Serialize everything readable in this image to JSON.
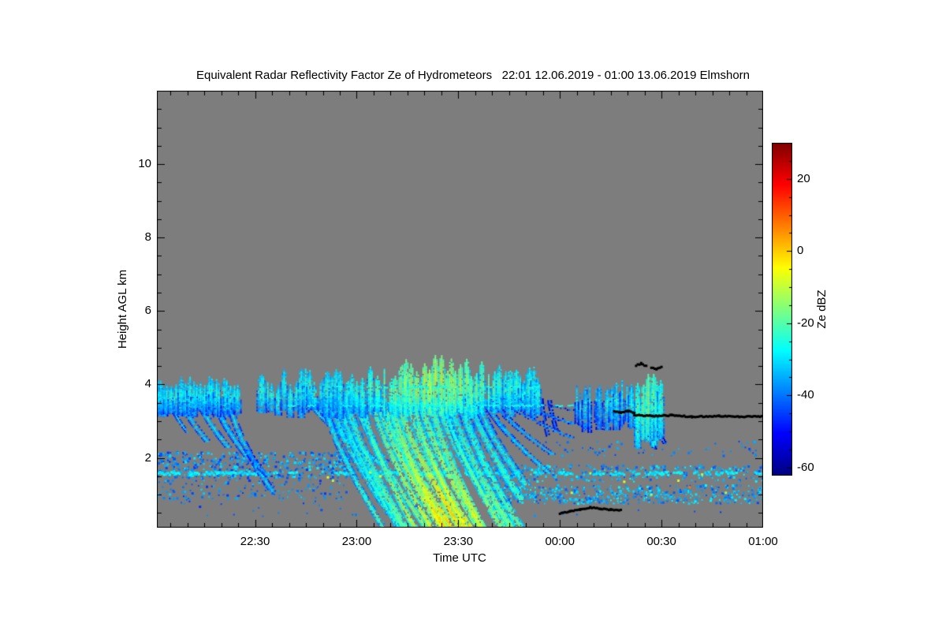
{
  "chart_data": {
    "type": "heatmap",
    "title": "Equivalent Radar Reflectivity Factor Ze of Hydrometeors   22:01 12.06.2019 - 01:00 13.06.2019 Elmshorn",
    "station": "Elmshorn",
    "time_span": "22:01 12.06.2019 - 01:00 13.06.2019",
    "xlabel": "Time UTC",
    "ylabel": "Height AGL km",
    "plot_bg_color": "#7d7d7d",
    "x_axis": {
      "start_label": "22:01",
      "end_label": "01:00",
      "duration_min": 179,
      "major_ticks": [
        {
          "min": 29,
          "label": "22:30"
        },
        {
          "min": 59,
          "label": "23:00"
        },
        {
          "min": 89,
          "label": "23:30"
        },
        {
          "min": 119,
          "label": "00:00"
        },
        {
          "min": 149,
          "label": "00:30"
        },
        {
          "min": 179,
          "label": "01:00"
        }
      ],
      "minor_step_min": 5
    },
    "y_axis": {
      "range_km": [
        0.1,
        12
      ],
      "major_ticks": [
        2,
        4,
        6,
        8,
        10
      ],
      "minor_step_km": 0.5
    },
    "colorbar": {
      "label": "Ze dBZ",
      "colormap": "jet",
      "range_dbz": [
        -62,
        30
      ],
      "major_ticks": [
        20,
        0,
        -20,
        -40,
        -60
      ],
      "minor_step_dbz": 5,
      "top_color": "#7f0000",
      "bottom_color": "#00007f"
    },
    "features": [
      {
        "name": "insect-layer-left-upper",
        "type": "speckle",
        "t0": 0,
        "t1": 57,
        "h0": 1.45,
        "h1": 2.15,
        "n": 550,
        "dbz0": -46,
        "dbz1": -28,
        "seed": 11
      },
      {
        "name": "insect-layer-left-lower",
        "type": "speckle",
        "t0": 0,
        "t1": 57,
        "h0": 0.85,
        "h1": 1.45,
        "n": 170,
        "dbz0": -46,
        "dbz1": -31,
        "seed": 12
      },
      {
        "name": "insect-layer-mid",
        "type": "speckle",
        "t0": 57,
        "t1": 96,
        "h0": 1.5,
        "h1": 2.1,
        "n": 90,
        "dbz0": -45,
        "dbz1": -30,
        "seed": 13
      },
      {
        "name": "insect-layer-right-mid",
        "type": "speckle",
        "t0": 96,
        "t1": 179,
        "h0": 1.35,
        "h1": 1.8,
        "n": 330,
        "dbz0": -44,
        "dbz1": -27,
        "seed": 14
      },
      {
        "name": "insect-layer-right-low",
        "type": "speckle",
        "t0": 100,
        "t1": 179,
        "h0": 0.75,
        "h1": 1.25,
        "n": 520,
        "dbz0": -44,
        "dbz1": -27,
        "seed": 15
      },
      {
        "name": "specks-high-right",
        "type": "speckle",
        "t0": 108,
        "t1": 179,
        "h0": 2.05,
        "h1": 2.45,
        "n": 70,
        "dbz0": -46,
        "dbz1": -33,
        "seed": 16
      },
      {
        "name": "sparse-specks-low",
        "type": "speckle",
        "t0": 4,
        "t1": 175,
        "h0": 0.4,
        "h1": 0.85,
        "n": 40,
        "dbz0": -47,
        "dbz1": -36,
        "seed": 17
      },
      {
        "name": "bragg-row-1.6km",
        "type": "dashrow",
        "h": 1.58,
        "t0": 0,
        "t1": 179,
        "dbz": -29,
        "fill": 0.5,
        "seg": 1.8,
        "thick": 3,
        "jitter": 0.05,
        "seed": 21
      },
      {
        "name": "bragg-row-1.0km",
        "type": "dashrow",
        "h": 1.0,
        "t0": 100,
        "t1": 179,
        "dbz": -32,
        "fill": 0.35,
        "seg": 1.5,
        "thick": 2,
        "jitter": 0.07,
        "seed": 22
      },
      {
        "name": "fall-streaks-band-A",
        "type": "streaks",
        "seed": 31,
        "items": [
          {
            "t": 4,
            "top": 3.5,
            "bottom": 2.7,
            "drift": 5,
            "w": 1.3,
            "coreTop": -33,
            "coreBot": -31
          },
          {
            "t": 8,
            "top": 3.45,
            "bottom": 2.45,
            "drift": 7,
            "w": 1.5,
            "coreTop": -32,
            "coreBot": -30
          },
          {
            "t": 13,
            "top": 3.5,
            "bottom": 2.3,
            "drift": 8,
            "w": 1.6,
            "coreTop": -31,
            "coreBot": -30
          },
          {
            "t": 18,
            "top": 3.4,
            "bottom": 2.0,
            "drift": 9,
            "w": 1.5,
            "coreTop": -32,
            "coreBot": -31
          },
          {
            "t": 22,
            "top": 3.35,
            "bottom": 1.1,
            "drift": 12,
            "w": 1.7,
            "coreTop": -31,
            "coreBot": -32
          },
          {
            "t": 27,
            "top": 2.2,
            "bottom": 1.5,
            "drift": 6,
            "w": 1.8,
            "coreTop": -38,
            "coreBot": -35
          }
        ]
      },
      {
        "name": "virga-trail-right",
        "type": "streaks",
        "seed": 32,
        "items": [
          {
            "t": 113.5,
            "top": 3.6,
            "bottom": 2.6,
            "drift": 2,
            "w": 0.8,
            "coreTop": -42,
            "coreBot": -40
          },
          {
            "t": 116,
            "top": 3.55,
            "bottom": 2.75,
            "drift": 2,
            "w": 0.8,
            "coreTop": -41,
            "coreBot": -40
          },
          {
            "t": 144,
            "top": 3.1,
            "bottom": 2.25,
            "drift": 3,
            "w": 1.3,
            "coreTop": -34,
            "coreBot": -40
          },
          {
            "t": 147,
            "top": 3.0,
            "bottom": 2.4,
            "drift": 3,
            "w": 1.1,
            "coreTop": -36,
            "coreBot": -41
          }
        ]
      },
      {
        "name": "precipitation-fan",
        "type": "fan",
        "t0": 45,
        "t1": 107,
        "step": 2.2,
        "top": 3.45,
        "peakT": 82,
        "peakSig": 15,
        "peakLead": 10,
        "fullFrom": 48,
        "fullTo": 90,
        "seed": 33
      },
      {
        "name": "cloud-band-A",
        "type": "plumes",
        "t0": 0,
        "t1": 24,
        "base": 3.35,
        "topMin": 3.85,
        "topMax": 4.25,
        "spacing": 1.2,
        "width": 1.6,
        "core": -26,
        "seed": 41
      },
      {
        "name": "cloud-band-B",
        "type": "plumes",
        "t0": 31,
        "t1": 113,
        "base": 3.38,
        "topMin": 3.95,
        "topMax": 4.45,
        "spacing": 1.7,
        "width": 1.8,
        "core": -25,
        "boost": 15,
        "peakT": 82,
        "peakSig": 16,
        "peakLift": 0.35,
        "seed": 42
      },
      {
        "name": "cloud-patch-1",
        "type": "plumes",
        "t0": 124,
        "t1": 131,
        "base": 3.0,
        "topMin": 3.7,
        "topMax": 4.0,
        "spacing": 1.4,
        "width": 1.4,
        "core": -30,
        "seed": 44
      },
      {
        "name": "cloud-patch-2",
        "type": "plumes",
        "t0": 133,
        "t1": 141,
        "base": 3.05,
        "topMin": 3.9,
        "topMax": 4.12,
        "spacing": 1.4,
        "width": 1.5,
        "core": -27,
        "seed": 45
      },
      {
        "name": "cloud-patch-3",
        "type": "plumes",
        "t0": 142,
        "t1": 149,
        "base": 2.55,
        "topMin": 4.0,
        "topMax": 4.3,
        "spacing": 1.4,
        "width": 1.6,
        "core": -24,
        "boost": 9,
        "peakT": 145,
        "peakSig": 3,
        "seed": 46
      },
      {
        "name": "cloud-layer-line-3.4km",
        "type": "dashrow",
        "h": 3.42,
        "t0": 36,
        "t1": 124,
        "dbz": -25,
        "fill": 0.5,
        "seg": 1.3,
        "thick": 2,
        "jitter": 0.02,
        "seed": 25
      },
      {
        "name": "cloud-layer-line-3.9km",
        "type": "dashrow",
        "h": 3.93,
        "t0": 52,
        "t1": 113,
        "dbz": -26,
        "fill": 0.5,
        "seg": 1.1,
        "thick": 2,
        "jitter": 0.02,
        "seed": 26
      },
      {
        "name": "bright-specks",
        "type": "dots",
        "pts": [
          [
            50.5,
            1.47,
            -8
          ],
          [
            52,
            1.38,
            -12
          ],
          [
            63,
            1.6,
            -10
          ],
          [
            66,
            1.5,
            -6
          ],
          [
            122.5,
            1.05,
            -10
          ],
          [
            128,
            1.58,
            -14
          ],
          [
            138,
            1.35,
            -8
          ],
          [
            146,
            1.0,
            -12
          ],
          [
            154,
            1.38,
            -9
          ],
          [
            157.3,
            1.2,
            8
          ],
          [
            161,
            1.55,
            -13
          ],
          [
            168,
            1.05,
            -14
          ]
        ]
      },
      {
        "name": "cloud-base-line-upper",
        "type": "blackline",
        "thick": 3,
        "seed": 51,
        "pts": [
          [
            135,
            3.28
          ],
          [
            137,
            3.24
          ],
          [
            139,
            3.27
          ],
          [
            141,
            3.24
          ]
        ]
      },
      {
        "name": "cloud-base-line-long",
        "type": "blackline",
        "thick": 3,
        "seed": 52,
        "pts": [
          [
            141,
            3.17
          ],
          [
            146,
            3.14
          ],
          [
            152,
            3.16
          ],
          [
            158,
            3.12
          ],
          [
            166,
            3.14
          ],
          [
            172,
            3.12
          ],
          [
            179,
            3.13
          ]
        ]
      },
      {
        "name": "black-arc-1",
        "type": "blackline",
        "thick": 3,
        "seed": 53,
        "pts": [
          [
            141.5,
            4.52
          ],
          [
            143,
            4.57
          ],
          [
            144.5,
            4.5
          ]
        ]
      },
      {
        "name": "black-arc-2",
        "type": "blackline",
        "thick": 3,
        "seed": 54,
        "pts": [
          [
            146,
            4.46
          ],
          [
            147.5,
            4.42
          ],
          [
            149,
            4.47
          ]
        ]
      },
      {
        "name": "cloud-base-line-low",
        "type": "blackline",
        "thick": 3,
        "seed": 55,
        "pts": [
          [
            119,
            0.48
          ],
          [
            122,
            0.55
          ],
          [
            125,
            0.6
          ],
          [
            128,
            0.65
          ],
          [
            131,
            0.62
          ],
          [
            134,
            0.59
          ],
          [
            137,
            0.57
          ]
        ]
      }
    ]
  }
}
